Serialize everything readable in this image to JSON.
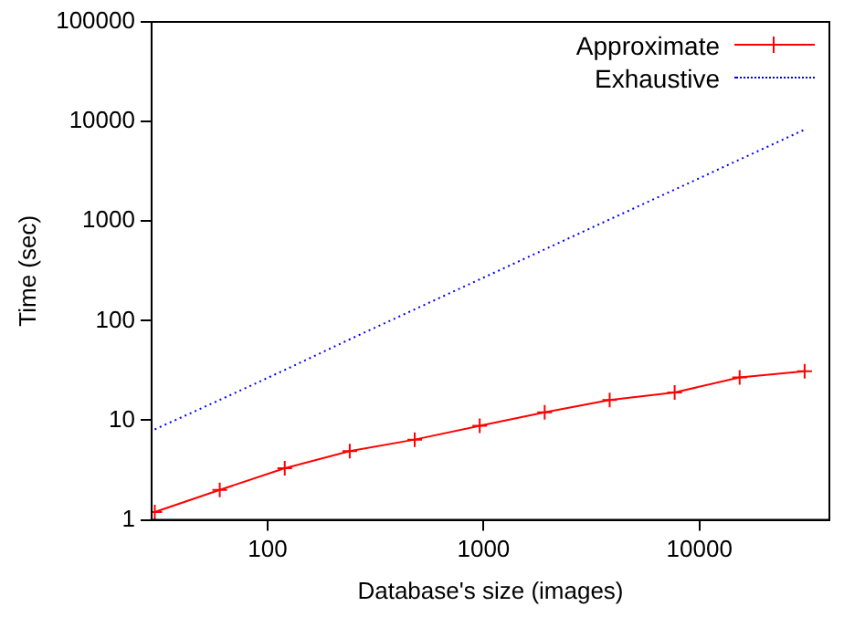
{
  "chart_data": {
    "type": "line",
    "xlabel": "Database's size (images)",
    "ylabel": "Time (sec)",
    "x": [
      30,
      60,
      120,
      240,
      480,
      960,
      1920,
      3840,
      7680,
      15360,
      30720
    ],
    "series": [
      {
        "name": "Approximate",
        "color": "#ff0000",
        "marker": "cross",
        "line_style": "solid",
        "values": [
          1.2,
          2.0,
          3.3,
          4.9,
          6.4,
          8.8,
          12,
          16,
          19,
          27,
          31
        ]
      },
      {
        "name": "Exhaustive",
        "color": "#0000ff",
        "marker": "none",
        "line_style": "dotted",
        "values": [
          8.1,
          16,
          32,
          65,
          130,
          260,
          520,
          1040,
          2070,
          4150,
          8300
        ]
      }
    ],
    "log": "xy",
    "xlim": [
      29,
      40000
    ],
    "xticks": [
      100,
      1000,
      10000
    ],
    "ylim": [
      1,
      100000
    ],
    "yticks": [
      1,
      10,
      100,
      1000,
      10000,
      100000
    ],
    "grid": false,
    "legend": "top right"
  }
}
